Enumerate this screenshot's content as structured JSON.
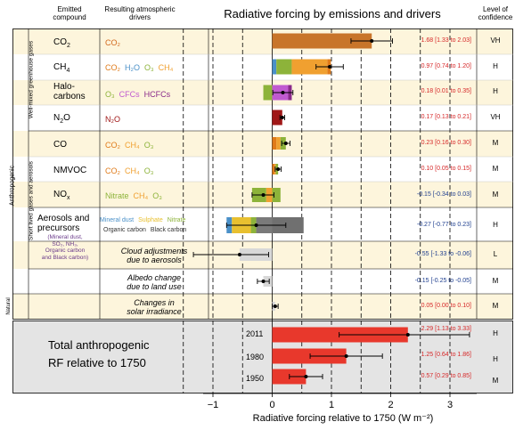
{
  "header": {
    "emitted": "Emitted\ncompound",
    "drivers": "Resulting atmospheric\ndrivers",
    "title": "Radiative forcing by emissions and drivers",
    "confidence": "Level of\nconfidence"
  },
  "side_labels": {
    "anthropogenic": "Anthropogenic",
    "wmghg": "Well-mixed greenhouse gases",
    "short_lived": "Short lived gases and aerosols",
    "natural": "Natural"
  },
  "rows": [
    {
      "name": "CO",
      "sub": "2",
      "drivers": [
        {
          "t": "CO₂",
          "c": "#d2691e"
        }
      ],
      "value": "1.68 [1.33 to 2.03]",
      "value_color": "#d62728",
      "conf": "VH"
    },
    {
      "name": "CH",
      "sub": "4",
      "drivers": [
        {
          "t": "CO₂",
          "c": "#e07b1a"
        },
        {
          "t": "H₂O",
          "c": "#4a90c8"
        },
        {
          "t": "O₃",
          "c": "#8db33a"
        },
        {
          "t": "CH₄",
          "c": "#f0a030"
        }
      ],
      "value": "0.97 [0.74 to 1.20]",
      "value_color": "#d62728",
      "conf": "H"
    },
    {
      "name": "Halo-\ncarbons",
      "sub": "",
      "drivers": [
        {
          "t": "O₃",
          "c": "#8db33a"
        },
        {
          "t": "CFCs",
          "c": "#c05ad0"
        },
        {
          "t": "HCFCs",
          "c": "#8a2a8a"
        }
      ],
      "value": "0.18 [0.01 to 0.35]",
      "value_color": "#d62728",
      "conf": "H"
    },
    {
      "name": "N",
      "sub": "2",
      "name_tail": "O",
      "drivers": [
        {
          "t": "N₂O",
          "c": "#a01818"
        }
      ],
      "value": "0.17 [0.13 to 0.21]",
      "value_color": "#d62728",
      "conf": "VH"
    },
    {
      "name": "CO",
      "sub": "",
      "drivers": [
        {
          "t": "CO₂",
          "c": "#e07b1a"
        },
        {
          "t": "CH₄",
          "c": "#f0a030"
        },
        {
          "t": "O₃",
          "c": "#8db33a"
        }
      ],
      "value": "0.23 [0.16 to 0.30]",
      "value_color": "#d62728",
      "conf": "M"
    },
    {
      "name": "NMVOC",
      "sub": "",
      "drivers": [
        {
          "t": "CO₂",
          "c": "#e07b1a"
        },
        {
          "t": "CH₄",
          "c": "#f0a030"
        },
        {
          "t": "O₃",
          "c": "#8db33a"
        }
      ],
      "value": "0.10 [0.05 to 0.15]",
      "value_color": "#d62728",
      "conf": "M"
    },
    {
      "name": "NO",
      "sub": "x",
      "drivers": [
        {
          "t": "Nitrate",
          "c": "#8db33a"
        },
        {
          "t": "CH₄",
          "c": "#f0a030"
        },
        {
          "t": "O₃",
          "c": "#8db33a"
        }
      ],
      "value": "-0.15 [-0.34 to 0.03]",
      "value_color": "#1f3f8f",
      "conf": "M"
    },
    {
      "name": "Aerosols and\nprecursors",
      "sub": "",
      "value": "-0.27 [-0.77 to 0.23]",
      "value_color": "#1f3f8f",
      "conf": "H"
    },
    {
      "name": "",
      "sub": "",
      "value": "-0.55 [-1.33 to -0.06]",
      "value_color": "#1f3f8f",
      "conf": "L"
    },
    {
      "name": "",
      "sub": "",
      "value": "-0.15 [-0.25 to -0.05]",
      "value_color": "#1f3f8f",
      "conf": "M"
    },
    {
      "name": "",
      "sub": "",
      "value": "0.05 [0.00 to 0.10]",
      "value_color": "#d62728",
      "conf": "M"
    }
  ],
  "aerosol_drivers": {
    "line1": [
      {
        "t": "Mineral dust",
        "c": "#4a90c8"
      },
      {
        "t": "Sulphate",
        "c": "#e8c030"
      },
      {
        "t": "Nitrate",
        "c": "#8db33a"
      }
    ],
    "line2": [
      {
        "t": "Organic carbon",
        "c": "#333"
      },
      {
        "t": "Black carbon",
        "c": "#333"
      }
    ],
    "precursors_sub": "(Mineral dust,\nSO₂, NH₃,\nOrganic carbon\nand Black carbon)"
  },
  "italic_labels": {
    "cloud": "Cloud adjustments\ndue to aerosols",
    "albedo": "Albedo change\ndue to land use",
    "solar": "Changes in\nsolar irradiance"
  },
  "total": {
    "label": "Total anthropogenic\nRF relative to 1750",
    "years": [
      {
        "year": "2011",
        "value": "2.29 [1.13 to 3.33]",
        "conf": "H"
      },
      {
        "year": "1980",
        "value": "1.25 [0.64 to 1.86]",
        "conf": "H"
      },
      {
        "year": "1950",
        "value": "0.57 [0.29 to 0.85]",
        "conf": "M"
      }
    ]
  },
  "chart_data": {
    "type": "bar",
    "title": "Radiative forcing by emissions and drivers",
    "xlabel": "Radiative forcing relative to 1750 (W m⁻²)",
    "xlim": [
      -1.5,
      3.5
    ],
    "xticks": [
      "−1",
      "0",
      "1",
      "2",
      "3"
    ],
    "xtick_values": [
      -1,
      0,
      1,
      2,
      3
    ],
    "grid_x": [
      -1.5,
      -1,
      -0.5,
      0.5,
      1,
      1.5,
      2,
      2.5,
      3
    ],
    "rows": [
      {
        "category": "CO2",
        "segments": [
          {
            "from": 0,
            "to": 1.68,
            "color": "#c8752a"
          }
        ],
        "best": 1.68,
        "lo": 1.33,
        "hi": 2.03
      },
      {
        "category": "CH4",
        "segments": [
          {
            "from": 0,
            "to": 0.07,
            "color": "#4a90c8"
          },
          {
            "from": 0.07,
            "to": 0.33,
            "color": "#8db33a"
          },
          {
            "from": 0.33,
            "to": 0.93,
            "color": "#f0a030"
          },
          {
            "from": 0.93,
            "to": 0.99,
            "color": "#e07b1a"
          }
        ],
        "best": 0.97,
        "lo": 0.74,
        "hi": 1.2
      },
      {
        "category": "Halocarbons",
        "segments": [
          {
            "from": -0.15,
            "to": 0,
            "color": "#8db33a"
          },
          {
            "from": 0,
            "to": 0.27,
            "color": "#c05ad0"
          },
          {
            "from": 0.27,
            "to": 0.33,
            "color": "#8a2a8a"
          }
        ],
        "best": 0.18,
        "lo": 0.01,
        "hi": 0.35
      },
      {
        "category": "N2O",
        "segments": [
          {
            "from": 0,
            "to": 0.17,
            "color": "#a01818"
          }
        ],
        "best": 0.17,
        "lo": 0.13,
        "hi": 0.21
      },
      {
        "category": "CO",
        "segments": [
          {
            "from": 0,
            "to": 0.07,
            "color": "#e07b1a"
          },
          {
            "from": 0.07,
            "to": 0.14,
            "color": "#f0a030"
          },
          {
            "from": 0.14,
            "to": 0.23,
            "color": "#8db33a"
          }
        ],
        "best": 0.23,
        "lo": 0.16,
        "hi": 0.3
      },
      {
        "category": "NMVOC",
        "segments": [
          {
            "from": 0,
            "to": 0.04,
            "color": "#e07b1a"
          },
          {
            "from": 0.04,
            "to": 0.06,
            "color": "#f0a030"
          },
          {
            "from": 0.06,
            "to": 0.1,
            "color": "#8db33a"
          }
        ],
        "best": 0.1,
        "lo": 0.05,
        "hi": 0.15
      },
      {
        "category": "NOx",
        "segments": [
          {
            "from": -0.34,
            "to": -0.1,
            "color": "#8db33a"
          },
          {
            "from": -0.1,
            "to": 0,
            "color": "#f0a030"
          },
          {
            "from": 0,
            "to": 0.14,
            "color": "#8db33a"
          }
        ],
        "best": -0.15,
        "lo": -0.34,
        "hi": 0.03
      },
      {
        "category": "Aerosols and precursors",
        "segments": [
          {
            "from": -0.77,
            "to": -0.68,
            "color": "#4a90c8"
          },
          {
            "from": -0.68,
            "to": -0.36,
            "color": "#e8c030"
          },
          {
            "from": -0.36,
            "to": -0.27,
            "color": "#8db33a"
          },
          {
            "from": -0.27,
            "to": 0,
            "color": "#7a7a7a"
          },
          {
            "from": 0,
            "to": 0.53,
            "color": "#707070"
          }
        ],
        "best": -0.27,
        "lo": -0.77,
        "hi": 0.23
      },
      {
        "category": "Cloud adjustments due to aerosols",
        "segments": [
          {
            "from": -0.55,
            "to": 0,
            "color": "#d8d8d8"
          }
        ],
        "best": -0.55,
        "lo": -1.33,
        "hi": -0.06
      },
      {
        "category": "Albedo change due to land use",
        "segments": [
          {
            "from": -0.15,
            "to": 0,
            "color": "#d8d8d8"
          }
        ],
        "best": -0.15,
        "lo": -0.25,
        "hi": -0.05
      },
      {
        "category": "Changes in solar irradiance",
        "segments": [
          {
            "from": 0,
            "to": 0.05,
            "color": "#d8d8d8"
          }
        ],
        "best": 0.05,
        "lo": 0.0,
        "hi": 0.1
      },
      {
        "category": "Total 2011",
        "segments": [
          {
            "from": 0,
            "to": 2.29,
            "color": "#e8382c"
          }
        ],
        "best": 2.29,
        "lo": 1.13,
        "hi": 3.33
      },
      {
        "category": "Total 1980",
        "segments": [
          {
            "from": 0,
            "to": 1.25,
            "color": "#e8382c"
          }
        ],
        "best": 1.25,
        "lo": 0.64,
        "hi": 1.86
      },
      {
        "category": "Total 1950",
        "segments": [
          {
            "from": 0,
            "to": 0.57,
            "color": "#e8382c"
          }
        ],
        "best": 0.57,
        "lo": 0.29,
        "hi": 0.85
      }
    ]
  }
}
